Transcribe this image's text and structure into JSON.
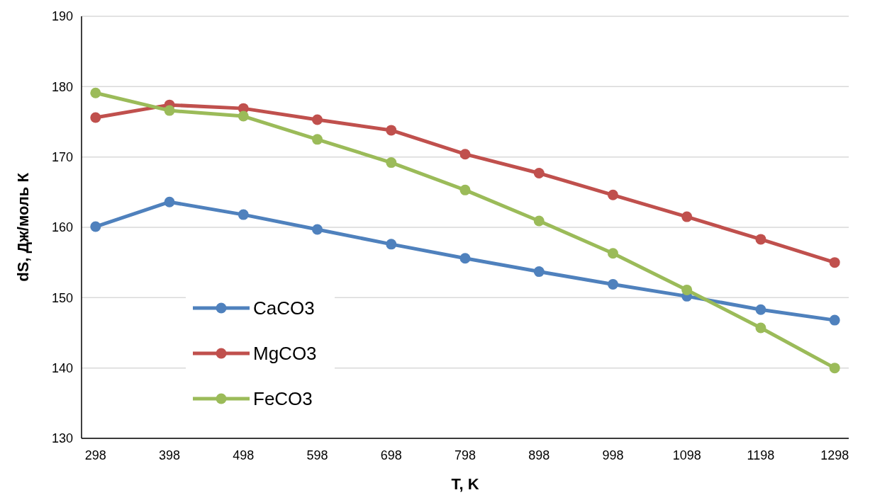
{
  "chart_data": {
    "type": "line",
    "xlabel": "T, K",
    "ylabel": "dS, Дж/моль К",
    "categories": [
      "298",
      "398",
      "498",
      "598",
      "698",
      "798",
      "898",
      "998",
      "1098",
      "1198",
      "1298"
    ],
    "series": [
      {
        "name": "CaCO3",
        "color": "#4f81bd",
        "values": [
          160.1,
          163.6,
          161.8,
          159.7,
          157.6,
          155.6,
          153.7,
          151.9,
          150.2,
          148.3,
          146.8
        ]
      },
      {
        "name": "MgCO3",
        "color": "#c0504d",
        "values": [
          175.6,
          177.4,
          176.9,
          175.3,
          173.8,
          170.4,
          167.7,
          164.6,
          161.5,
          158.3,
          155.0
        ]
      },
      {
        "name": "FeCO3",
        "color": "#9bbb59",
        "values": [
          179.1,
          176.6,
          175.8,
          172.5,
          169.2,
          165.3,
          160.9,
          156.3,
          151.1,
          145.7,
          140.0
        ]
      }
    ],
    "ylim": [
      130,
      190
    ],
    "yticks": [
      130,
      140,
      150,
      160,
      170,
      180,
      190
    ],
    "grid": "y",
    "legend": "bottom left",
    "marker": "circle",
    "line_style": "solid"
  }
}
